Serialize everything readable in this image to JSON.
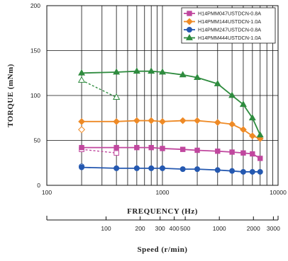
{
  "chart_data": {
    "type": "line",
    "xlabel": "FREQUENCY (Hz)",
    "ylabel": "TORQUE (mNm)",
    "x_scale": "log",
    "xlim": [
      100,
      10000
    ],
    "ylim": [
      0,
      200
    ],
    "grid": true,
    "legend_position": "top-right",
    "x_ticks": [
      {
        "value": 100,
        "label": "100"
      },
      {
        "value": 1000,
        "label": "1000"
      },
      {
        "value": 10000,
        "label": "10000"
      }
    ],
    "y_ticks": [
      {
        "value": 0,
        "label": "0"
      },
      {
        "value": 50,
        "label": "50"
      },
      {
        "value": 100,
        "label": "100"
      },
      {
        "value": 150,
        "label": "150"
      },
      {
        "value": 200,
        "label": "200"
      }
    ],
    "series": [
      {
        "name": "H14PMM047USTDCN-0.8A",
        "color": "#c0479e",
        "marker": "square",
        "x": [
          200,
          400,
          600,
          800,
          1000,
          1500,
          2000,
          3000,
          4000,
          5000,
          6000,
          7000
        ],
        "y": [
          42,
          42,
          42,
          42,
          41,
          40,
          39,
          38,
          37,
          36,
          35,
          30
        ],
        "pullout": {
          "x": [
            200,
            400
          ],
          "y": [
            40,
            36
          ]
        }
      },
      {
        "name": "H14PMM144USTDCN-1.0A",
        "color": "#ee8a26",
        "marker": "diamond",
        "x": [
          200,
          400,
          600,
          800,
          1000,
          1500,
          2000,
          3000,
          4000,
          5000,
          6000,
          7000
        ],
        "y": [
          71,
          71,
          72,
          72,
          71,
          72,
          72,
          70,
          68,
          62,
          55,
          52
        ],
        "pullout": {
          "x": [
            200
          ],
          "y": [
            62
          ]
        }
      },
      {
        "name": "H14PMM247USTDCN-0.8A",
        "color": "#2458b0",
        "marker": "circle",
        "x": [
          200,
          400,
          600,
          800,
          1000,
          1500,
          2000,
          3000,
          4000,
          5000,
          6000,
          7000
        ],
        "y": [
          20,
          19,
          19,
          19,
          19,
          18,
          18,
          17,
          16,
          15,
          15,
          15
        ],
        "pullout": {
          "x": [
            200
          ],
          "y": [
            21
          ]
        }
      },
      {
        "name": "H14PMM444USTDCN-1.0A",
        "color": "#2e8b3e",
        "marker": "triangle",
        "x": [
          200,
          400,
          600,
          800,
          1000,
          1500,
          2000,
          3000,
          4000,
          5000,
          6000,
          7000
        ],
        "y": [
          125,
          126,
          127,
          127,
          126,
          123,
          120,
          113,
          100,
          90,
          75,
          56
        ],
        "pullout": {
          "x": [
            200,
            400
          ],
          "y": [
            117,
            98
          ]
        }
      }
    ],
    "secondary_axis": {
      "label": "Speed (r/min)",
      "ticks": [
        {
          "value": 100,
          "label": "100"
        },
        {
          "value": 200,
          "label": "200"
        },
        {
          "value": 300,
          "label": "300"
        },
        {
          "value": 400,
          "label": "400"
        },
        {
          "value": 500,
          "label": "500"
        },
        {
          "value": 1000,
          "label": "1000"
        },
        {
          "value": 2000,
          "label": "2000"
        },
        {
          "value": 3000,
          "label": "3000"
        }
      ]
    }
  }
}
